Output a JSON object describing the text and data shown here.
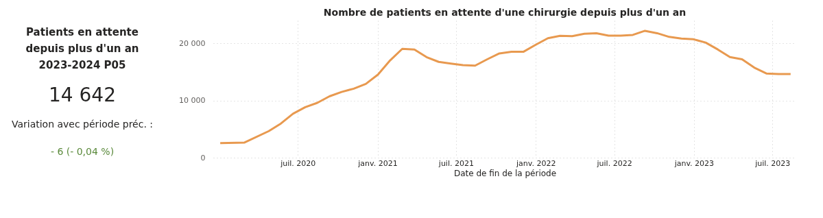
{
  "chart_data": [
    {
      "type": "other",
      "title": "Patients en attente depuis plus d'un an 2023-2024 P05",
      "annotations": [
        "14 642",
        "Variation avec période préc. :",
        "- 6 (- 0,04 %)"
      ]
    },
    {
      "type": "line",
      "title": "Nombre de patients en attente d'une chirurgie depuis plus d'un an",
      "xlabel": "Date de fin de la période",
      "x": [
        "2020-01-04",
        "2020-02-29",
        "2020-04-25",
        "2020-05-23",
        "2020-06-20",
        "2020-07-18",
        "2020-08-15",
        "2020-09-12",
        "2020-10-10",
        "2020-11-07",
        "2020-12-05",
        "2021-01-02",
        "2021-01-30",
        "2021-02-27",
        "2021-03-27",
        "2021-04-24",
        "2021-05-22",
        "2021-06-19",
        "2021-07-17",
        "2021-08-14",
        "2021-09-11",
        "2021-10-09",
        "2021-11-06",
        "2021-12-04",
        "2022-01-01",
        "2022-01-29",
        "2022-02-26",
        "2022-03-26",
        "2022-04-23",
        "2022-05-21",
        "2022-06-18",
        "2022-07-16",
        "2022-08-13",
        "2022-09-10",
        "2022-10-08",
        "2022-11-05",
        "2022-12-03",
        "2022-12-31",
        "2023-01-28",
        "2023-02-25",
        "2023-03-25",
        "2023-04-22",
        "2023-05-20",
        "2023-06-17",
        "2023-07-15",
        "2023-08-12"
      ],
      "series": [
        {
          "color": "#e8994f",
          "values": [
            2550,
            2650,
            4650,
            5980,
            7690,
            8830,
            9600,
            10740,
            11510,
            12080,
            12910,
            14550,
            17030,
            19050,
            18930,
            17600,
            16770,
            16460,
            16190,
            16110,
            17220,
            18250,
            18550,
            18550,
            19770,
            20910,
            21330,
            21260,
            21680,
            21790,
            21370,
            21370,
            21490,
            22210,
            21790,
            21140,
            20840,
            20720,
            20150,
            18940,
            17600,
            17220,
            15770,
            14740,
            14650,
            14642
          ]
        }
      ],
      "xlim": [
        "2019-12-19",
        "2023-08-25"
      ],
      "xticks": [
        {
          "value": "2020-07-01",
          "label": "juil. 2020"
        },
        {
          "value": "2021-01-01",
          "label": "janv. 2021"
        },
        {
          "value": "2021-07-01",
          "label": "juil. 2021"
        },
        {
          "value": "2022-01-01",
          "label": "janv. 2022"
        },
        {
          "value": "2022-07-01",
          "label": "juil. 2022"
        },
        {
          "value": "2023-01-01",
          "label": "janv. 2023"
        },
        {
          "value": "2023-07-01",
          "label": "juil. 2023"
        }
      ],
      "ylim": [
        0,
        24000
      ],
      "yticks": [
        0,
        {
          "value": 10000,
          "label": "10 000"
        },
        {
          "value": 20000,
          "label": "20 000"
        }
      ],
      "grid": true,
      "marker": "none",
      "line_style": "solid"
    }
  ]
}
